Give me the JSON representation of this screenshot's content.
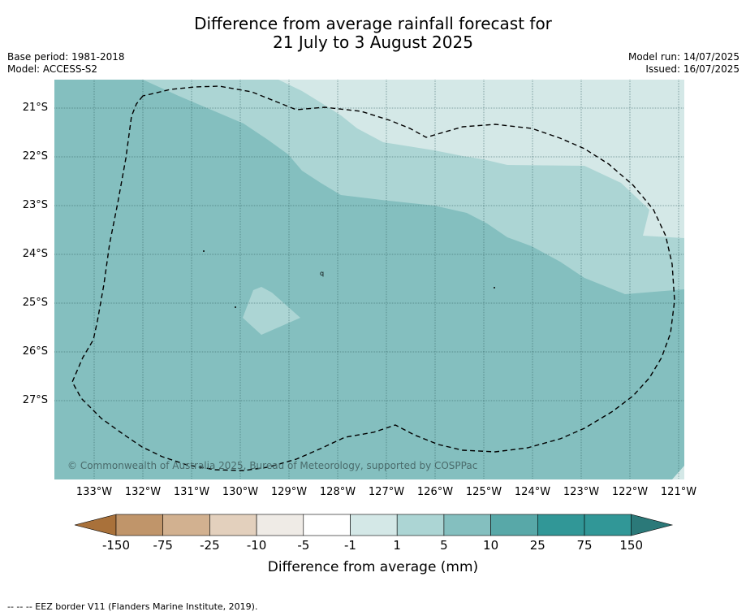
{
  "title": {
    "line1": "Difference from average rainfall forecast for",
    "line2": "21 July to 3 August 2025"
  },
  "meta_left": {
    "base_period": "Base period: 1981-2018",
    "model": "Model: ACCESS-S2"
  },
  "meta_right": {
    "model_run": "Model run: 14/07/2025",
    "issued": "Issued: 16/07/2025"
  },
  "map": {
    "lat_labels": [
      "21°S",
      "22°S",
      "23°S",
      "24°S",
      "25°S",
      "26°S",
      "27°S"
    ],
    "lon_labels": [
      "133°W",
      "132°W",
      "131°W",
      "130°W",
      "129°W",
      "128°W",
      "127°W",
      "126°W",
      "125°W",
      "124°W",
      "123°W",
      "122°W",
      "121°W"
    ],
    "copyright": "© Commonwealth of Australia 2025, Bureau of Meteorology, supported by COSPPac",
    "island_label": "q",
    "colors": {
      "band_1_5": "#d4e8e7",
      "band_5_10": "#acd5d4",
      "band_10_25": "#84bfbf",
      "gridline": "#2b5a5a",
      "eez_border": "#000000"
    }
  },
  "colorbar": {
    "labels": [
      "-150",
      "-75",
      "-25",
      "-10",
      "-5",
      "-1",
      "1",
      "5",
      "10",
      "25",
      "75",
      "150"
    ],
    "colors": [
      "#a9713a",
      "#c0956a",
      "#d2b190",
      "#e3d0bd",
      "#efebe6",
      "#ffffff",
      "#d4e8e7",
      "#acd5d4",
      "#84bfbf",
      "#58a8a8",
      "#319797",
      "#2b7979"
    ],
    "title": "Difference from average (mm)"
  },
  "footnote": "-- -- -- EEZ border V11 (Flanders Marine Institute, 2019)."
}
